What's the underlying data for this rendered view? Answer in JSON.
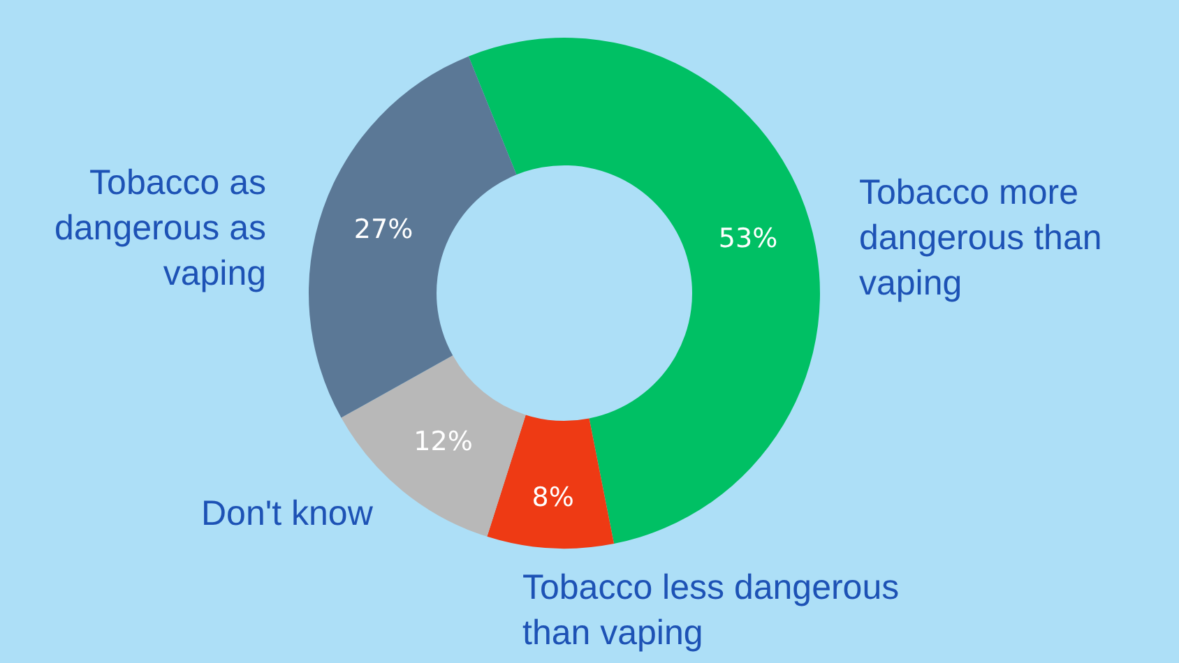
{
  "chart_data": {
    "type": "donut",
    "categories": [
      "Tobacco more dangerous than vaping",
      "Tobacco less dangerous than vaping",
      "Don't know",
      "Tobacco as dangerous as vaping"
    ],
    "values": [
      53,
      8,
      12,
      27
    ],
    "colors": [
      "#00c064",
      "#ee3a14",
      "#b8b8b8",
      "#5b7896"
    ],
    "value_labels": [
      "53%",
      "8%",
      "12%",
      "27%"
    ],
    "legend": false
  }
}
